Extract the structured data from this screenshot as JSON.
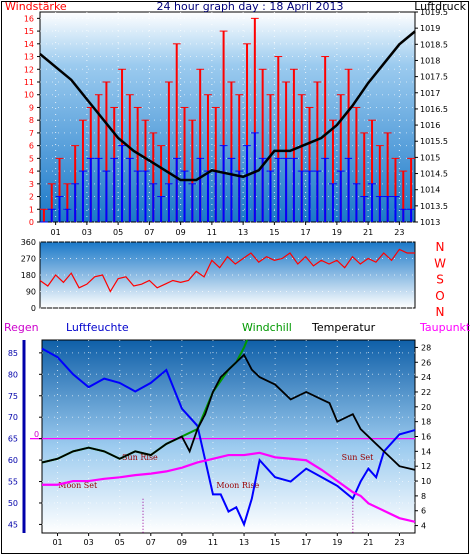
{
  "colors": {
    "wind_gust": "#ff0000",
    "wind_avg": "#0000ff",
    "pressure": "#000000",
    "wind_dir": "#ff0000",
    "humidity": "#0000ff",
    "temperature": "#000000",
    "dewpoint": "#ff00ff",
    "windchill": "#009900",
    "rain_axis": "#0000aa",
    "plot_bg_top": "#ffffff",
    "plot_bg_bottom": "#1a78c8"
  },
  "chart_data": [
    {
      "id": "wind-pressure",
      "type": "line",
      "title": "24 hour graph day : 18 April 2013",
      "left_axis_label": "Windstärke",
      "right_axis_label": "Luftdruck",
      "x_ticks": [
        "01",
        "03",
        "05",
        "07",
        "09",
        "11",
        "13",
        "15",
        "17",
        "19",
        "21",
        "23"
      ],
      "left_ticks": [
        "0",
        "1",
        "2",
        "3",
        "4",
        "5",
        "6",
        "7",
        "8",
        "9",
        "10",
        "11",
        "12",
        "13",
        "14",
        "15",
        "16"
      ],
      "right_ticks": [
        "1013",
        "1013.5",
        "1014",
        "1014.5",
        "1015",
        "1015.5",
        "1016",
        "1016.5",
        "1017",
        "1017.5",
        "1018",
        "1018.5",
        "1019",
        "1019.5"
      ],
      "xlim": [
        0,
        24
      ],
      "ylim_left": [
        0,
        16.5
      ],
      "ylim_right": [
        1013,
        1019.5
      ],
      "series": [
        {
          "name": "Windstärke",
          "axis": "left",
          "x": [
            0,
            0.5,
            1,
            1.5,
            2,
            2.5,
            3,
            3.5,
            4,
            4.5,
            5,
            5.5,
            6,
            6.5,
            7,
            7.5,
            8,
            8.5,
            9,
            9.5,
            10,
            10.5,
            11,
            11.5,
            12,
            12.5,
            13,
            13.5,
            14,
            14.5,
            15,
            15.5,
            16,
            16.5,
            17,
            17.5,
            18,
            18.5,
            19,
            19.5,
            20,
            20.5,
            21,
            21.5,
            22,
            22.5,
            23,
            23.5,
            24
          ],
          "values": [
            1,
            3,
            5,
            3,
            6,
            8,
            9,
            10,
            11,
            9,
            12,
            10,
            9,
            8,
            7,
            6,
            11,
            14,
            9,
            8,
            12,
            10,
            9,
            15,
            11,
            10,
            14,
            16,
            12,
            10,
            13,
            11,
            12,
            10,
            9,
            11,
            13,
            8,
            10,
            12,
            9,
            7,
            8,
            6,
            7,
            5,
            4,
            5,
            1
          ]
        },
        {
          "name": "",
          "axis": "left",
          "x": [
            0,
            0.5,
            1,
            1.5,
            2,
            2.5,
            3,
            3.5,
            4,
            4.5,
            5,
            5.5,
            6,
            6.5,
            7,
            7.5,
            8,
            8.5,
            9,
            9.5,
            10,
            10.5,
            11,
            11.5,
            12,
            12.5,
            13,
            13.5,
            14,
            14.5,
            15,
            15.5,
            16,
            16.5,
            17,
            17.5,
            18,
            18.5,
            19,
            19.5,
            20,
            20.5,
            21,
            21.5,
            22,
            22.5,
            23,
            23.5,
            24
          ],
          "values": [
            0,
            1,
            2,
            1,
            3,
            4,
            5,
            5,
            4,
            5,
            6,
            5,
            4,
            4,
            3,
            2,
            3,
            5,
            4,
            3,
            5,
            4,
            4,
            6,
            5,
            4,
            6,
            7,
            5,
            4,
            5,
            5,
            5,
            4,
            4,
            4,
            5,
            3,
            4,
            5,
            3,
            2,
            3,
            2,
            2,
            2,
            1,
            1,
            0
          ]
        },
        {
          "name": "Luftdruck",
          "axis": "right",
          "x": [
            0,
            1,
            2,
            3,
            4,
            5,
            6,
            7,
            8,
            9,
            10,
            11,
            12,
            13,
            14,
            15,
            16,
            17,
            18,
            19,
            20,
            21,
            22,
            23,
            24
          ],
          "values": [
            1018.2,
            1017.8,
            1017.4,
            1016.8,
            1016.2,
            1015.6,
            1015.2,
            1014.9,
            1014.6,
            1014.3,
            1014.3,
            1014.6,
            1014.5,
            1014.4,
            1014.6,
            1015.2,
            1015.2,
            1015.4,
            1015.6,
            1016.0,
            1016.6,
            1017.3,
            1017.9,
            1018.5,
            1018.9
          ]
        }
      ]
    },
    {
      "id": "wind-direction",
      "type": "line",
      "left_ticks": [
        "0",
        "90",
        "180",
        "270",
        "360"
      ],
      "right_labels": [
        "N",
        "W",
        "S",
        "O",
        "N"
      ],
      "ylim": [
        0,
        360
      ],
      "xlim": [
        0,
        24
      ],
      "series": [
        {
          "name": "",
          "x": [
            0,
            0.5,
            1,
            1.5,
            2,
            2.5,
            3,
            3.5,
            4,
            4.5,
            5,
            5.5,
            6,
            6.5,
            7,
            7.5,
            8,
            8.5,
            9,
            9.5,
            10,
            10.5,
            11,
            11.5,
            12,
            12.5,
            13,
            13.5,
            14,
            14.5,
            15,
            15.5,
            16,
            16.5,
            17,
            17.5,
            18,
            18.5,
            19,
            19.5,
            20,
            20.5,
            21,
            21.5,
            22,
            22.5,
            23,
            23.5,
            24
          ],
          "values": [
            150,
            120,
            180,
            140,
            190,
            110,
            130,
            170,
            180,
            90,
            160,
            170,
            120,
            130,
            150,
            110,
            130,
            150,
            140,
            150,
            200,
            170,
            260,
            220,
            280,
            240,
            270,
            300,
            250,
            280,
            260,
            270,
            300,
            240,
            280,
            230,
            260,
            240,
            260,
            220,
            280,
            240,
            270,
            250,
            300,
            260,
            320,
            300,
            300
          ]
        }
      ]
    },
    {
      "id": "humidity-temperature",
      "type": "line",
      "left_axis_label": "Regen",
      "humidity_axis_label": "Luftfeuchte",
      "windchill_label": "Windchill",
      "temperature_label": "Temperatur",
      "dewpoint_label": "Taupunkt",
      "x_ticks": [
        "01",
        "03",
        "05",
        "07",
        "09",
        "11",
        "13",
        "15",
        "17",
        "19",
        "21",
        "23"
      ],
      "left_ticks": [
        "45",
        "50",
        "55",
        "60",
        "65",
        "70",
        "75",
        "80",
        "85"
      ],
      "right_ticks": [
        "4",
        "6",
        "8",
        "10",
        "12",
        "14",
        "16",
        "18",
        "20",
        "22",
        "24",
        "26",
        "28"
      ],
      "rain_value_label": "0",
      "ylim_left": [
        43,
        88
      ],
      "ylim_right": [
        3,
        29
      ],
      "xlim": [
        0,
        24
      ],
      "annotations": [
        {
          "text": "Moon Set",
          "x": 2.3,
          "y": 53.5
        },
        {
          "text": "Sun Rise",
          "x": 6.3,
          "y": 60
        },
        {
          "text": "Moon Rise",
          "x": 12.6,
          "y": 53.5
        },
        {
          "text": "Sun Set",
          "x": 20.3,
          "y": 60
        }
      ],
      "series": [
        {
          "name": "Luftfeuchte",
          "axis": "left",
          "x": [
            0,
            1,
            2,
            3,
            4,
            5,
            6,
            7,
            8,
            9,
            9.5,
            10,
            10.5,
            11,
            11.5,
            12,
            12.5,
            13,
            13.5,
            14,
            15,
            16,
            17,
            18,
            19,
            20,
            20.5,
            21,
            21.5,
            22,
            22.5,
            23,
            24
          ],
          "values": [
            86,
            84,
            80,
            77,
            79,
            78,
            76,
            78,
            81,
            72,
            70,
            68,
            60,
            52,
            52,
            48,
            49,
            45,
            51,
            60,
            56,
            55,
            58,
            56,
            54,
            51,
            55,
            58,
            56,
            62,
            64,
            66,
            67
          ]
        },
        {
          "name": "Temperatur",
          "axis": "right",
          "x": [
            0,
            1,
            2,
            3,
            4,
            5,
            6,
            7,
            8,
            9,
            9.5,
            10,
            10.5,
            11,
            11.5,
            12,
            12.5,
            13,
            13.5,
            14,
            15,
            16,
            17,
            18,
            18.5,
            19,
            20,
            20.5,
            21,
            21.5,
            22,
            22.5,
            23,
            24
          ],
          "values": [
            12.5,
            13,
            14,
            14.5,
            14,
            13,
            14,
            13.5,
            15,
            16,
            14,
            17,
            19,
            22,
            24,
            25,
            26,
            27,
            25,
            24,
            23,
            21,
            22,
            21,
            20.5,
            18,
            19,
            17,
            16,
            15,
            14,
            13,
            12,
            11.5
          ]
        },
        {
          "name": "Taupunkt",
          "axis": "right",
          "x": [
            0,
            1,
            2,
            3,
            4,
            5,
            6,
            7,
            8,
            9,
            10,
            11,
            12,
            13,
            14,
            15,
            16,
            17,
            18,
            19,
            20,
            20.5,
            21,
            22,
            23,
            24
          ],
          "values": [
            9.5,
            9.5,
            10,
            10,
            10.3,
            10.5,
            10.8,
            11,
            11.3,
            11.8,
            12.5,
            13,
            13.5,
            13.5,
            13.8,
            13.2,
            13,
            12.8,
            11.5,
            10,
            8.5,
            8,
            7,
            6,
            5,
            4.5
          ]
        },
        {
          "name": "Windchill",
          "axis": "right",
          "x": [
            0,
            1,
            2,
            3,
            4,
            5,
            6,
            7,
            8,
            9,
            10,
            11,
            12,
            12.5,
            13,
            13.2
          ],
          "values": [
            12.5,
            13,
            14,
            14.5,
            14,
            13,
            14,
            13.5,
            15,
            16,
            17,
            22,
            25,
            26,
            28,
            29
          ]
        }
      ]
    }
  ]
}
